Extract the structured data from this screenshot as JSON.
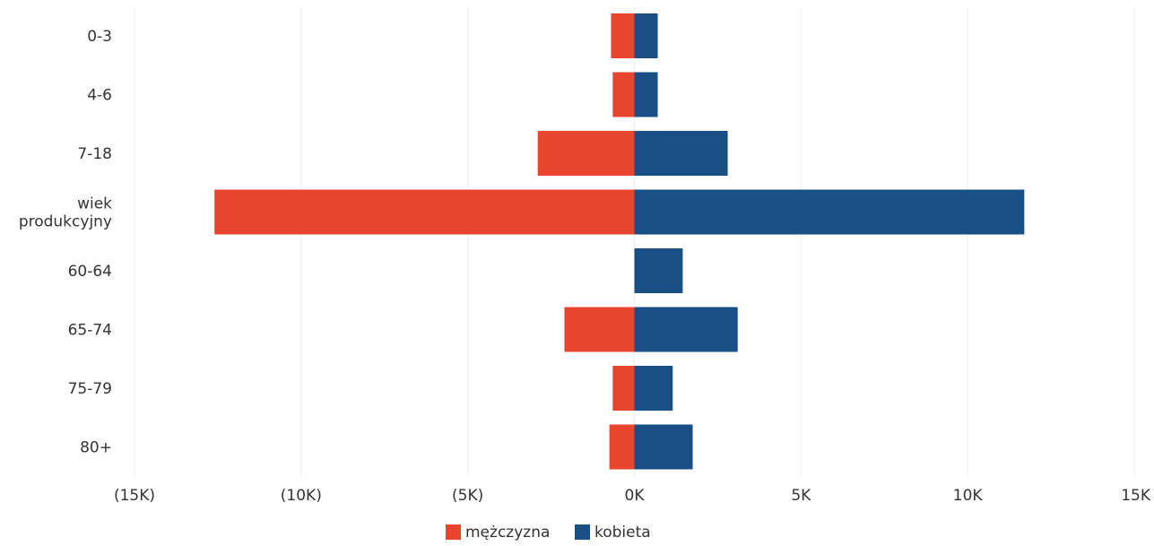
{
  "chart_data": {
    "type": "bar",
    "orientation": "horizontal",
    "layout": "population-pyramid",
    "categories": [
      "0-3",
      "4-6",
      "7-18",
      "wiek produkcyjny",
      "60-64",
      "65-74",
      "75-79",
      "80+"
    ],
    "category_lines": [
      [
        "0-3"
      ],
      [
        "4-6"
      ],
      [
        "7-18"
      ],
      [
        "wiek",
        "produkcyjny"
      ],
      [
        "60-64"
      ],
      [
        "65-74"
      ],
      [
        "75-79"
      ],
      [
        "80+"
      ]
    ],
    "series": [
      {
        "name": "mężczyzna",
        "color": "#e8452f",
        "values": [
          -700,
          -650,
          -2900,
          -12600,
          0,
          -2100,
          -650,
          -750
        ]
      },
      {
        "name": "kobieta",
        "color": "#1a4f86",
        "values": [
          700,
          700,
          2800,
          11700,
          1450,
          3100,
          1150,
          1750
        ]
      }
    ],
    "xlim": [
      -15000,
      15000
    ],
    "x_ticks": [
      -15000,
      -10000,
      -5000,
      0,
      5000,
      10000,
      15000
    ],
    "x_tick_labels": [
      "(15K)",
      "(10K)",
      "(5K)",
      "0K",
      "5K",
      "10K",
      "15K"
    ],
    "grid": true,
    "legend_position": "bottom-center"
  }
}
